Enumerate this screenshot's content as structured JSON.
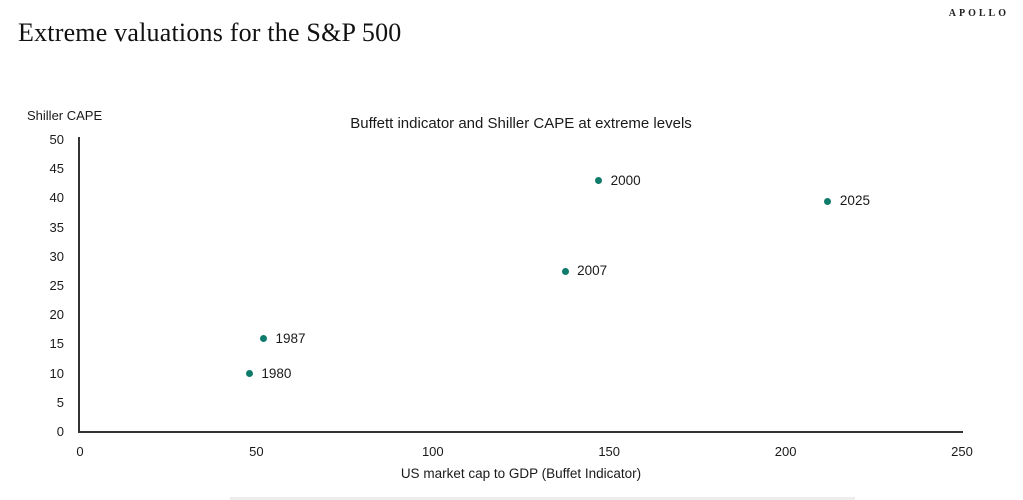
{
  "header": {
    "title": "Extreme valuations for the S&P 500",
    "brand": "APOLLO"
  },
  "chart_data": {
    "type": "scatter",
    "title": "Buffett indicator and Shiller CAPE at extreme levels",
    "y_axis_label": "Shiller CAPE",
    "xlabel": "US market cap to GDP (Buffet Indicator)",
    "xlim": [
      0,
      250
    ],
    "xtick_step": 50,
    "ylim": [
      0,
      50
    ],
    "ytick_step": 5,
    "grid": false,
    "legend": "none",
    "point_color": "#0f7b6a",
    "points": [
      {
        "label": "1980",
        "x": 48,
        "y": 10
      },
      {
        "label": "1987",
        "x": 52,
        "y": 16
      },
      {
        "label": "2007",
        "x": 137.5,
        "y": 27.5
      },
      {
        "label": "2000",
        "x": 147,
        "y": 43
      },
      {
        "label": "2025",
        "x": 212,
        "y": 39.5
      }
    ]
  }
}
